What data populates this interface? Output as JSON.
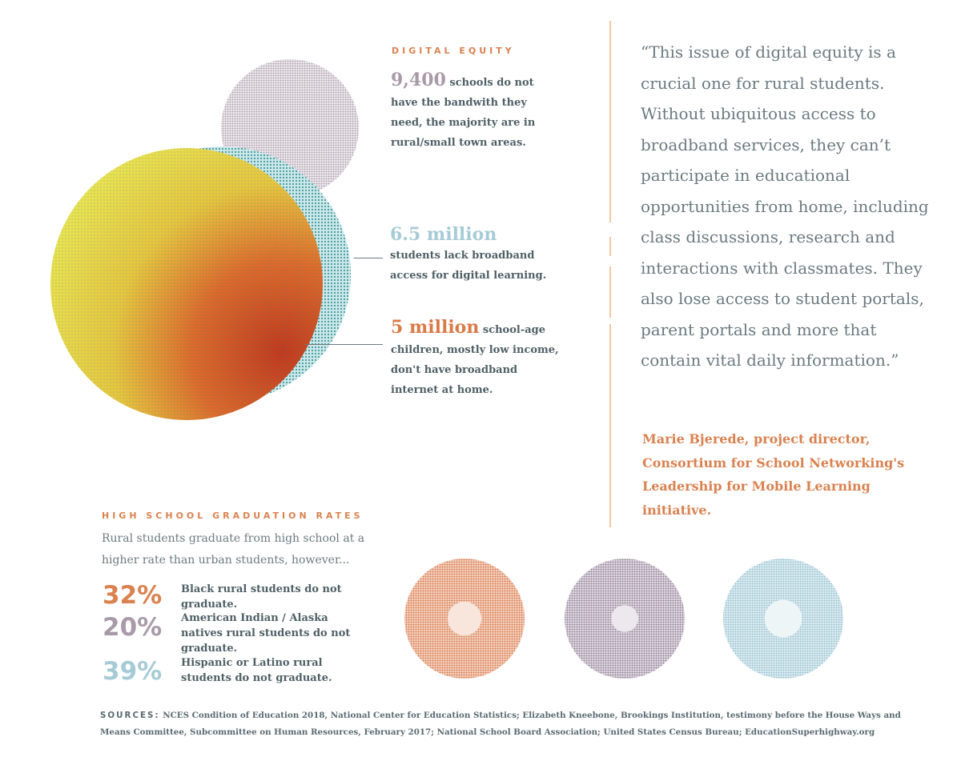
{
  "digital_equity": {
    "heading": "DIGITAL EQUITY",
    "stat1": {
      "value": "9,400",
      "text": "schools do not have the bandwith they need, the majority are in rural/small town areas."
    },
    "stat2": {
      "value": "6.5 million",
      "text": "students lack broadband access for digital learning."
    },
    "stat3": {
      "value": "5 million",
      "text": "school-age children, mostly low income, don't have broadband internet at home."
    }
  },
  "quote": {
    "text": "“This issue of digital equity is a crucial one for rural students. Without ubiquitous access to broadband services, they can’t participate in educational opportunities from home, including class discussions, research and interactions with classmates. They also lose access to student portals, parent portals and more that contain vital daily information.”",
    "attribution": "Marie Bjerede, project director, Consortium for School Networking's Leadership for Mobile Learning initiative."
  },
  "graduation": {
    "heading": "HIGH SCHOOL GRADUATION RATES",
    "intro": "Rural students graduate from high school at a higher rate than urban students, however...",
    "items": [
      {
        "pct": "32%",
        "desc": "Black rural students do not graduate.",
        "value": 32
      },
      {
        "pct": "20%",
        "desc": "American Indian / Alaska natives rural students do not graduate.",
        "value": 20
      },
      {
        "pct": "39%",
        "desc": "Hispanic or Latino rural students do not graduate.",
        "value": 39
      }
    ]
  },
  "sources": {
    "label": "SOURCES:",
    "text": "NCES Condition of Education 2018, National Center for Education Statistics; Elizabeth Kneebone, Brookings Institution, testimony before the House Ways and Means Committee, Subcommittee on Human Resources, February 2017; National School Board Association; United States Census Bureau; EducationSuperhighway.org"
  },
  "colors": {
    "orange": "#d98250",
    "purple": "#a99aa9",
    "blue": "#a6cbd6",
    "teal": "#1f8f95",
    "yellow": "#e6e24a",
    "red": "#c83a1e",
    "slate": "#5a6a70"
  }
}
